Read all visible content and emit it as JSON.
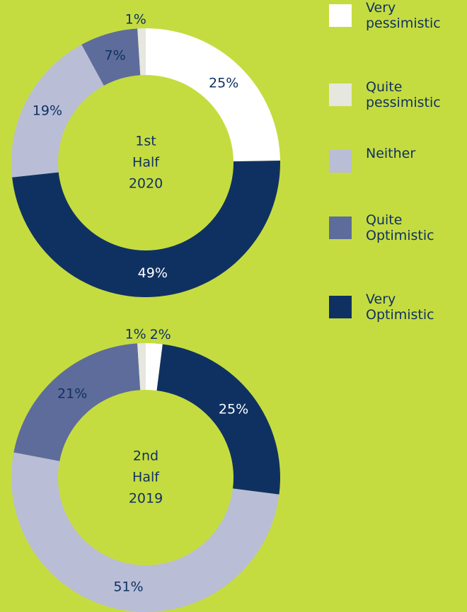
{
  "chart_data": [
    {
      "type": "pie",
      "center_label": [
        "1st",
        "Half",
        "2020"
      ],
      "categories": [
        "Very pessimistic",
        "Quite pessimistic",
        "Neither",
        "Quite Optimistic",
        "Very Optimistic"
      ],
      "colors": [
        "#ffffff",
        "#e6e7df",
        "#b9bdd6",
        "#5e6c9b",
        "#0f3162"
      ],
      "values": [
        25,
        1,
        19,
        7,
        49
      ],
      "value_labels": [
        "25%",
        "1%",
        "19%",
        "7%",
        "49%"
      ]
    },
    {
      "type": "pie",
      "center_label": [
        "2nd",
        "Half",
        "2019"
      ],
      "categories": [
        "Very pessimistic",
        "Quite pessimistic",
        "Neither",
        "Quite Optimistic",
        "Very Optimistic"
      ],
      "colors": [
        "#ffffff",
        "#e6e7df",
        "#b9bdd6",
        "#5e6c9b",
        "#0f3162"
      ],
      "values": [
        2,
        1,
        51,
        21,
        25
      ],
      "value_labels": [
        "2%",
        "1%",
        "51%",
        "21%",
        "25%"
      ]
    }
  ]
}
